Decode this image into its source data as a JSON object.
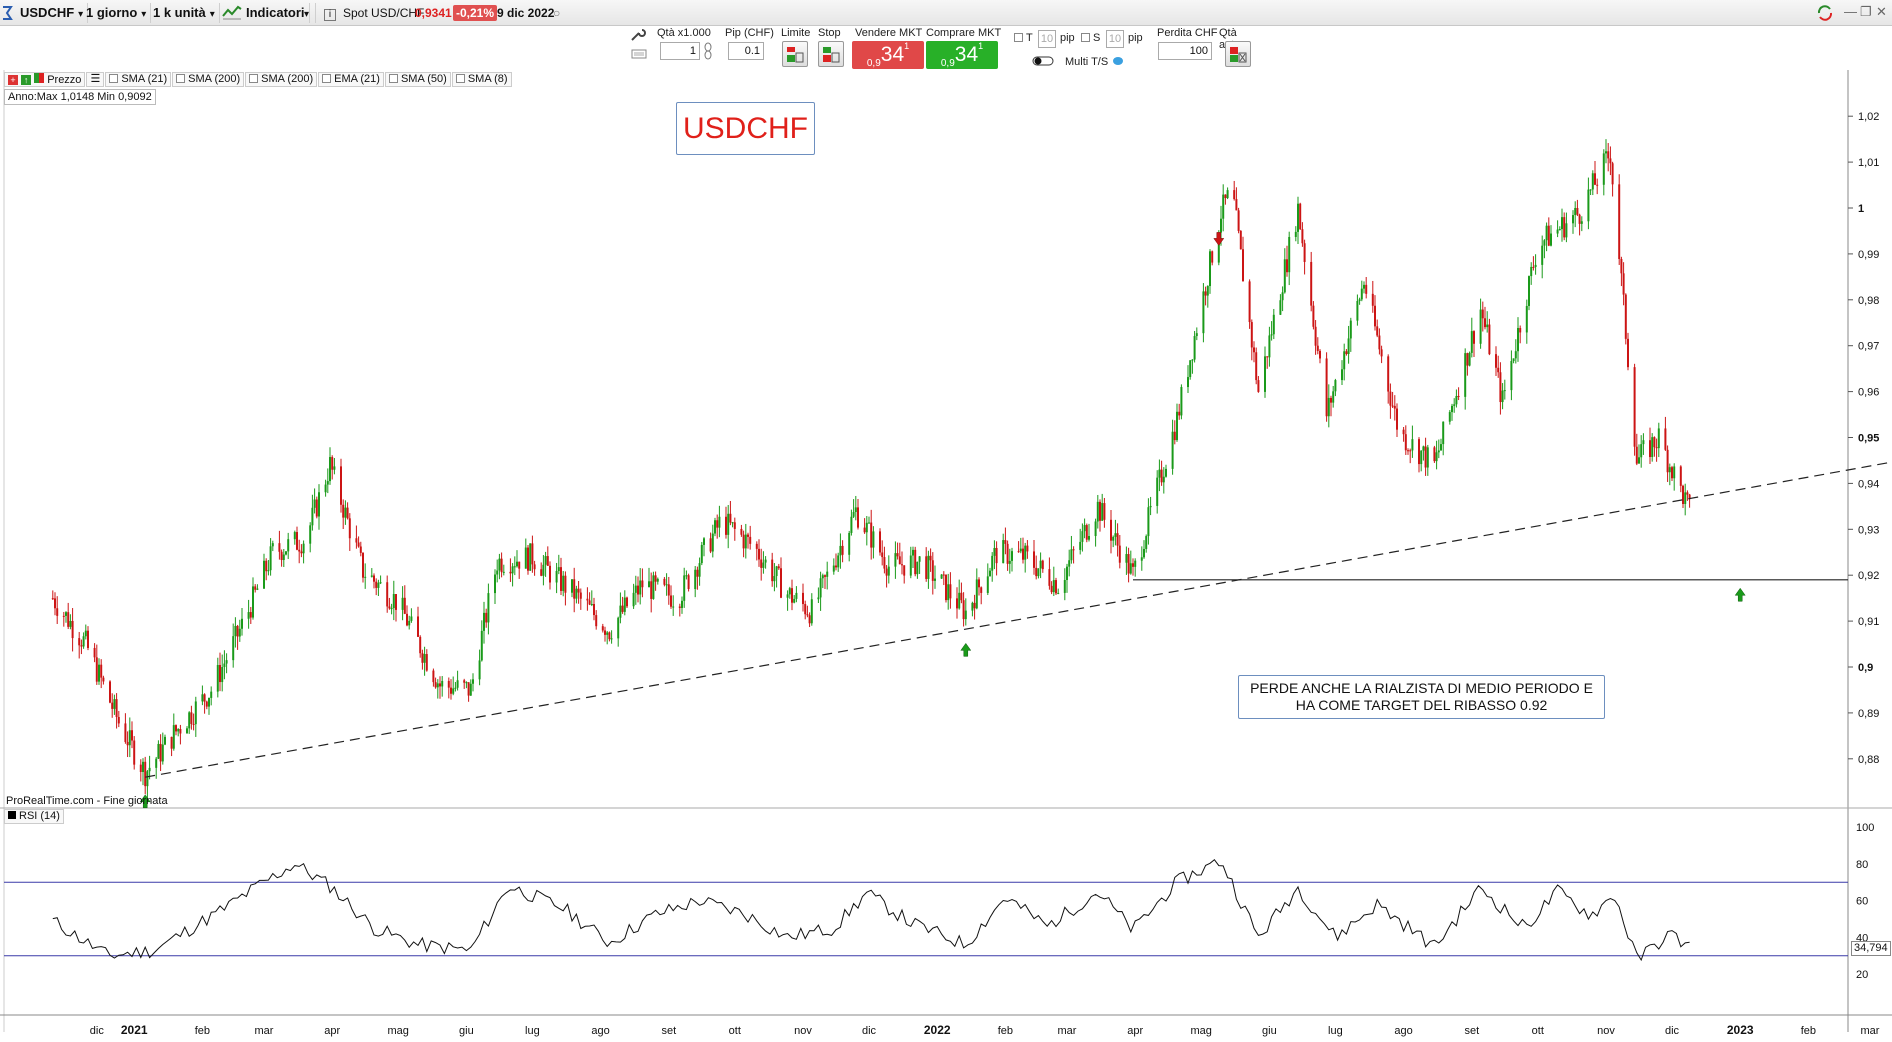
{
  "toolbar": {
    "symbol": "USDCHF",
    "timeframe": "1 giorno",
    "units": "1 k unità",
    "indicators_label": "Indicatori",
    "spot_label": "Spot USD/CHF",
    "spot_price": "0,9341",
    "spot_change": "-0,21%",
    "date": "9 dic 2022"
  },
  "trade": {
    "qty_label": "Qtà x1.000",
    "qty_value": "1",
    "pip_label": "Pip (CHF)",
    "pip_value": "0.1",
    "limit_label": "Limite",
    "stop_label": "Stop",
    "sell_label": "Vendere MKT",
    "buy_label": "Comprare MKT",
    "sell_prefix": "0,9",
    "sell_big": "34",
    "sell_sup": "1",
    "buy_prefix": "0,9",
    "buy_big": "34",
    "buy_sup": "1",
    "t_label": "T",
    "t_value": "10",
    "s_label": "S",
    "s_value": "10",
    "pip_unit": "pip",
    "multi_ts": "Multi T/S",
    "loss_label": "Perdita CHF",
    "loss_value": "100",
    "auto_qty_label": "Qtà auto"
  },
  "indicators": [
    "Prezzo",
    "SMA (21)",
    "SMA (200)",
    "SMA (200)",
    "EMA (21)",
    "SMA (50)",
    "SMA (8)"
  ],
  "year_info": "Anno:Max 1,0148 Min 0,9092",
  "chart_title": "USDCHF",
  "note": "PERDE ANCHE LA RIALZISTA DI MEDIO PERIODO E HA COME TARGET DEL RIBASSO 0.92",
  "source": "ProRealTime.com - Fine giornata",
  "rsi_label": "RSI (14)",
  "rsi_value": "34,794",
  "colors": {
    "up": "#1a9a1a",
    "down": "#cc1414",
    "rsi_band": "#3a3aa8",
    "accent": "#e0201a"
  },
  "chart_data": {
    "type": "candlestick",
    "price_axis": [
      "1,02",
      "1,01",
      "1",
      "0,99",
      "0,98",
      "0,97",
      "0,96",
      "0,95",
      "0,94",
      "0,93",
      "0,92",
      "0,91",
      "0,9",
      "0,89",
      "0,88"
    ],
    "rsi_axis": [
      "100",
      "80",
      "60",
      "40",
      "20"
    ],
    "x_labels": [
      "dic",
      "2021",
      "feb",
      "mar",
      "apr",
      "mag",
      "giu",
      "lug",
      "ago",
      "set",
      "ott",
      "nov",
      "dic",
      "2022",
      "feb",
      "mar",
      "apr",
      "mag",
      "giu",
      "lug",
      "ago",
      "set",
      "ott",
      "nov",
      "dic",
      "2023",
      "feb",
      "mar"
    ],
    "bold_x_labels": [
      "2021",
      "2022",
      "2023"
    ],
    "close_path": [
      [
        "2020-11-25",
        0.915
      ],
      [
        "2020-12-10",
        0.905
      ],
      [
        "2020-12-25",
        0.888
      ],
      [
        "2021-01-06",
        0.877
      ],
      [
        "2021-01-20",
        0.886
      ],
      [
        "2021-02-05",
        0.895
      ],
      [
        "2021-02-20",
        0.91
      ],
      [
        "2021-03-05",
        0.925
      ],
      [
        "2021-03-20",
        0.928
      ],
      [
        "2021-03-31",
        0.944
      ],
      [
        "2021-04-15",
        0.921
      ],
      [
        "2021-05-01",
        0.914
      ],
      [
        "2021-05-20",
        0.896
      ],
      [
        "2021-06-03",
        0.895
      ],
      [
        "2021-06-15",
        0.923
      ],
      [
        "2021-07-01",
        0.924
      ],
      [
        "2021-07-20",
        0.916
      ],
      [
        "2021-08-05",
        0.908
      ],
      [
        "2021-08-20",
        0.918
      ],
      [
        "2021-09-05",
        0.915
      ],
      [
        "2021-09-25",
        0.932
      ],
      [
        "2021-10-10",
        0.926
      ],
      [
        "2021-10-25",
        0.916
      ],
      [
        "2021-11-05",
        0.912
      ],
      [
        "2021-11-25",
        0.934
      ],
      [
        "2021-12-10",
        0.922
      ],
      [
        "2021-12-25",
        0.923
      ],
      [
        "2022-01-14",
        0.912
      ],
      [
        "2022-01-28",
        0.925
      ],
      [
        "2022-02-10",
        0.924
      ],
      [
        "2022-02-25",
        0.918
      ],
      [
        "2022-03-15",
        0.935
      ],
      [
        "2022-03-31",
        0.92
      ],
      [
        "2022-04-20",
        0.954
      ],
      [
        "2022-05-10",
        0.999
      ],
      [
        "2022-05-15",
        1.004
      ],
      [
        "2022-05-27",
        0.96
      ],
      [
        "2022-06-14",
        1.0
      ],
      [
        "2022-06-27",
        0.955
      ],
      [
        "2022-07-14",
        0.984
      ],
      [
        "2022-07-30",
        0.951
      ],
      [
        "2022-08-15",
        0.944
      ],
      [
        "2022-09-05",
        0.978
      ],
      [
        "2022-09-15",
        0.958
      ],
      [
        "2022-10-01",
        0.992
      ],
      [
        "2022-10-20",
        0.999
      ],
      [
        "2022-11-03",
        1.012
      ],
      [
        "2022-11-15",
        0.945
      ],
      [
        "2022-11-25",
        0.95
      ],
      [
        "2022-12-09",
        0.934
      ]
    ],
    "rsi_path": [
      [
        "2020-11-25",
        49
      ],
      [
        "2020-12-20",
        30
      ],
      [
        "2021-01-10",
        33
      ],
      [
        "2021-02-10",
        55
      ],
      [
        "2021-02-25",
        67
      ],
      [
        "2021-03-15",
        80
      ],
      [
        "2021-03-31",
        68
      ],
      [
        "2021-04-20",
        45
      ],
      [
        "2021-05-10",
        36
      ],
      [
        "2021-06-03",
        33
      ],
      [
        "2021-06-20",
        68
      ],
      [
        "2021-07-15",
        56
      ],
      [
        "2021-08-05",
        37
      ],
      [
        "2021-08-25",
        52
      ],
      [
        "2021-09-15",
        60
      ],
      [
        "2021-10-05",
        53
      ],
      [
        "2021-10-25",
        40
      ],
      [
        "2021-11-15",
        45
      ],
      [
        "2021-11-30",
        64
      ],
      [
        "2021-12-20",
        48
      ],
      [
        "2022-01-14",
        36
      ],
      [
        "2022-02-01",
        62
      ],
      [
        "2022-02-20",
        46
      ],
      [
        "2022-03-15",
        65
      ],
      [
        "2022-03-31",
        44
      ],
      [
        "2022-04-20",
        70
      ],
      [
        "2022-05-10",
        82
      ],
      [
        "2022-05-27",
        40
      ],
      [
        "2022-06-14",
        67
      ],
      [
        "2022-07-01",
        40
      ],
      [
        "2022-07-20",
        58
      ],
      [
        "2022-08-15",
        35
      ],
      [
        "2022-09-05",
        67
      ],
      [
        "2022-09-25",
        45
      ],
      [
        "2022-10-10",
        65
      ],
      [
        "2022-10-25",
        52
      ],
      [
        "2022-11-05",
        63
      ],
      [
        "2022-11-15",
        28
      ],
      [
        "2022-11-30",
        42
      ],
      [
        "2022-12-09",
        34.794
      ]
    ],
    "rsi_bands": [
      70,
      30
    ],
    "trendline_start": [
      "2021-01-06",
      0.876
    ],
    "trendline_end": [
      "2023-03-15",
      0.945
    ],
    "horizontal_level": 0.919,
    "horizontal_start": "2022-03-31"
  }
}
